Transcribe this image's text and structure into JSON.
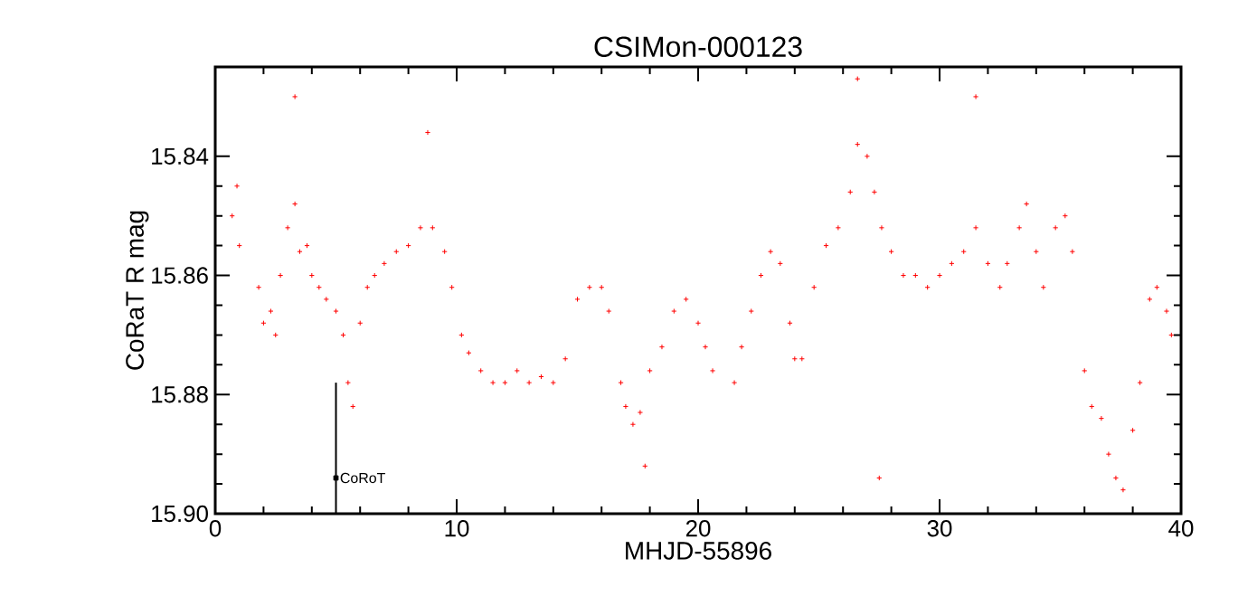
{
  "chart_data": {
    "type": "scatter",
    "title": "CSIMon-000123",
    "xlabel": "MHJD-55896",
    "ylabel": "CoRaT R mag",
    "xlim": [
      0,
      40
    ],
    "xticks": [
      0,
      10,
      20,
      30,
      40
    ],
    "ylim": [
      15.9,
      15.825
    ],
    "yticks": [
      15.84,
      15.86,
      15.88,
      {
        "value": 15.9,
        "label": "15.90"
      }
    ],
    "grid": false,
    "legend": false,
    "marker": "cross",
    "series": [
      {
        "color": "#ff0000",
        "x": [
          0.7,
          0.9,
          1.0,
          1.8,
          2.0,
          2.3,
          2.5,
          2.7,
          3.0,
          3.3,
          3.3,
          3.5,
          3.8,
          4.0,
          4.3,
          4.6,
          5.0,
          5.3,
          5.5,
          5.7,
          6.0,
          6.3,
          6.6,
          7.0,
          7.5,
          8.0,
          8.5,
          8.8,
          9.0,
          9.5,
          9.8,
          10.2,
          10.5,
          11.0,
          11.5,
          12.0,
          12.5,
          13.0,
          13.5,
          14.0,
          14.5,
          15.0,
          15.5,
          16.0,
          16.3,
          16.8,
          17.0,
          17.3,
          17.6,
          17.8,
          18.0,
          18.5,
          19.0,
          19.5,
          20.0,
          20.3,
          20.6,
          21.5,
          21.8,
          22.2,
          22.6,
          23.0,
          23.4,
          23.8,
          24.0,
          24.3,
          24.8,
          25.3,
          25.8,
          26.3,
          26.6,
          26.6,
          27.0,
          27.3,
          27.5,
          27.6,
          28.0,
          28.5,
          29.0,
          29.5,
          30.0,
          30.5,
          31.0,
          31.5,
          31.5,
          32.0,
          32.5,
          32.8,
          33.3,
          33.6,
          34.0,
          34.3,
          34.8,
          35.2,
          35.5,
          36.0,
          36.3,
          36.7,
          37.0,
          37.3,
          37.6,
          38.0,
          38.3,
          38.7,
          39.0,
          39.4,
          39.6
        ],
        "values": [
          15.85,
          15.845,
          15.855,
          15.862,
          15.868,
          15.866,
          15.87,
          15.86,
          15.852,
          15.848,
          15.83,
          15.856,
          15.855,
          15.86,
          15.862,
          15.864,
          15.866,
          15.87,
          15.878,
          15.882,
          15.868,
          15.862,
          15.86,
          15.858,
          15.856,
          15.855,
          15.852,
          15.836,
          15.852,
          15.856,
          15.862,
          15.87,
          15.873,
          15.876,
          15.878,
          15.878,
          15.876,
          15.878,
          15.877,
          15.878,
          15.874,
          15.864,
          15.862,
          15.862,
          15.866,
          15.878,
          15.882,
          15.885,
          15.883,
          15.892,
          15.876,
          15.872,
          15.866,
          15.864,
          15.868,
          15.872,
          15.876,
          15.878,
          15.872,
          15.866,
          15.86,
          15.856,
          15.858,
          15.868,
          15.874,
          15.874,
          15.862,
          15.855,
          15.852,
          15.846,
          15.838,
          15.827,
          15.84,
          15.846,
          15.894,
          15.852,
          15.856,
          15.86,
          15.86,
          15.862,
          15.86,
          15.858,
          15.856,
          15.852,
          15.83,
          15.858,
          15.862,
          15.858,
          15.852,
          15.848,
          15.856,
          15.862,
          15.852,
          15.85,
          15.856,
          15.876,
          15.882,
          15.884,
          15.89,
          15.894,
          15.896,
          15.886,
          15.878,
          15.864,
          15.862,
          15.866,
          15.87
        ]
      },
      {
        "name": "CoRoT",
        "color": "#000000",
        "marker": "square",
        "x": [
          5
        ],
        "values": [
          15.894
        ],
        "errors": [
          [
            15.878,
            15.9
          ]
        ]
      }
    ]
  }
}
